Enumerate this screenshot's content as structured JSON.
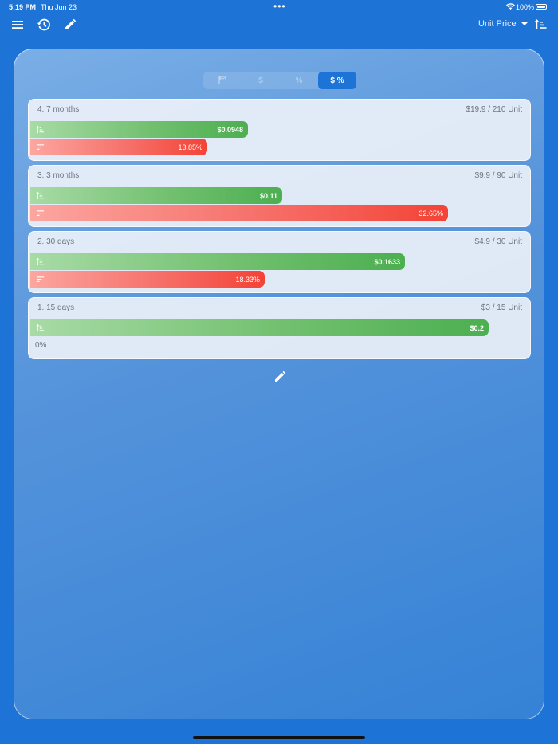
{
  "status_bar": {
    "time": "5:19 PM",
    "date": "Thu Jun 23",
    "dots": "•••",
    "battery": "100%"
  },
  "toolbar": {
    "sort_label": "Unit Price",
    "icons": [
      "menu-icon",
      "history-icon",
      "edit-icon",
      "sort-ascending-icon"
    ]
  },
  "segments": [
    {
      "label": "",
      "icon": "flag-icon",
      "active": false
    },
    {
      "label": "$",
      "active": false
    },
    {
      "label": "%",
      "active": false
    },
    {
      "label": "$ %",
      "active": true
    }
  ],
  "cards": [
    {
      "title": "4. 7 months",
      "price": "$19.9 / 210 Unit",
      "unit_price": "$0.0948",
      "unit_price_fraction": 0.474,
      "savings": "13.85%",
      "savings_fraction": 0.3866
    },
    {
      "title": "3. 3 months",
      "price": "$9.9 / 90 Unit",
      "unit_price": "$0.11",
      "unit_price_fraction": 0.55,
      "savings": "32.65%",
      "savings_fraction": 0.9115
    },
    {
      "title": "2. 30 days",
      "price": "$4.9 / 30 Unit",
      "unit_price": "$0.1633",
      "unit_price_fraction": 0.8167,
      "savings": "18.33%",
      "savings_fraction": 0.5117
    },
    {
      "title": "1. 15 days",
      "price": "$3 / 15 Unit",
      "unit_price": "$0.2",
      "unit_price_fraction": 1.0,
      "savings": "0%",
      "savings_fraction": 0
    }
  ],
  "colors": {
    "background": "#1d74d6",
    "bar_green": "#4caf50",
    "bar_red": "#f44336",
    "active_segment": "#1d74d6"
  }
}
